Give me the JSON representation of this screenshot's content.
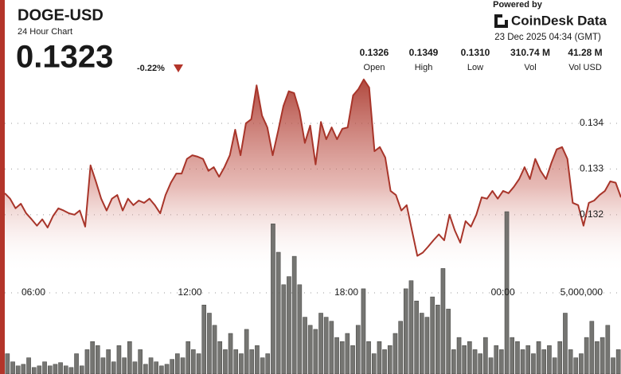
{
  "chart_data": {
    "type": "line",
    "title": "DOGE-USD",
    "subtitle": "24 Hour Chart",
    "price": "0.1323",
    "change": "-0.22%",
    "powered_by": "Powered by",
    "brand": "CoinDesk Data",
    "timestamp": "23 Dec 2025 04:34 (GMT)",
    "stats": [
      {
        "value": "0.1326",
        "label": "Open"
      },
      {
        "value": "0.1349",
        "label": "High"
      },
      {
        "value": "0.1310",
        "label": "Low"
      },
      {
        "value": "310.74 M",
        "label": "Vol"
      },
      {
        "value": "41.28 M",
        "label": "Vol USD"
      }
    ],
    "xlim": [
      4.9,
      28.53
    ],
    "xticks": [
      {
        "value": 6,
        "label": "06:00"
      },
      {
        "value": 12,
        "label": "12:00"
      },
      {
        "value": 18,
        "label": "18:00"
      },
      {
        "value": 24,
        "label": "00:00"
      }
    ],
    "ylim": [
      0.1309,
      0.135
    ],
    "yticks": [
      0.132,
      0.133,
      0.134
    ],
    "y2lim": [
      0,
      10000000
    ],
    "y2ticks": [
      {
        "value": 5000000,
        "label": "5,000,000"
      }
    ],
    "grid": true,
    "series": [
      {
        "type": "area",
        "color": "#a8352a",
        "values": [
          0.13247,
          0.13235,
          0.13214,
          0.13224,
          0.13203,
          0.1319,
          0.13176,
          0.1319,
          0.13172,
          0.13197,
          0.13214,
          0.13209,
          0.13203,
          0.132,
          0.13209,
          0.13174,
          0.13308,
          0.13273,
          0.13235,
          0.13209,
          0.13235,
          0.13243,
          0.13209,
          0.13235,
          0.13221,
          0.13231,
          0.13226,
          0.13235,
          0.13221,
          0.13203,
          0.13243,
          0.1327,
          0.1329,
          0.1329,
          0.13322,
          0.1333,
          0.13327,
          0.13322,
          0.13296,
          0.13304,
          0.13283,
          0.13304,
          0.1333,
          0.13386,
          0.1333,
          0.134,
          0.13409,
          0.13483,
          0.13417,
          0.13391,
          0.1333,
          0.13383,
          0.13438,
          0.1347,
          0.13466,
          0.13426,
          0.13357,
          0.13395,
          0.1331,
          0.13403,
          0.13365,
          0.13391,
          0.13365,
          0.13388,
          0.13391,
          0.13461,
          0.13475,
          0.13496,
          0.13478,
          0.13339,
          0.13348,
          0.13325,
          0.13252,
          0.13243,
          0.13209,
          0.13221,
          0.13165,
          0.1311,
          0.13117,
          0.1313,
          0.13144,
          0.13157,
          0.13144,
          0.132,
          0.13165,
          0.13139,
          0.13186,
          0.13174,
          0.132,
          0.13238,
          0.13235,
          0.13252,
          0.13235,
          0.13252,
          0.13247,
          0.13261,
          0.13278,
          0.13304,
          0.13278,
          0.13322,
          0.13296,
          0.13278,
          0.13313,
          0.13343,
          0.13348,
          0.13322,
          0.13226,
          0.13221,
          0.13176,
          0.13226,
          0.13231,
          0.13243,
          0.13252,
          0.13273,
          0.1327,
          0.13238
        ]
      },
      {
        "type": "bar",
        "axis": "y2",
        "color": "#5d5d59",
        "values": [
          1250000,
          750000,
          500000,
          600000,
          1000000,
          400000,
          500000,
          750000,
          500000,
          600000,
          700000,
          500000,
          400000,
          1250000,
          500000,
          1500000,
          2000000,
          1750000,
          1000000,
          1500000,
          750000,
          1750000,
          1000000,
          2000000,
          750000,
          1500000,
          600000,
          1000000,
          750000,
          500000,
          600000,
          900000,
          1250000,
          1000000,
          2000000,
          1500000,
          1250000,
          4250000,
          3750000,
          3000000,
          2000000,
          1500000,
          2500000,
          1500000,
          1250000,
          2750000,
          1500000,
          1750000,
          1000000,
          1250000,
          9250000,
          7500000,
          5500000,
          6000000,
          7250000,
          5500000,
          3500000,
          3000000,
          2750000,
          3750000,
          3500000,
          3250000,
          2250000,
          2000000,
          2500000,
          1750000,
          3000000,
          5250000,
          2000000,
          1250000,
          2000000,
          1500000,
          1750000,
          2500000,
          3250000,
          5250000,
          5750000,
          4500000,
          3750000,
          3500000,
          4750000,
          4250000,
          6500000,
          4000000,
          1500000,
          2250000,
          1750000,
          2000000,
          1500000,
          1250000,
          2250000,
          1000000,
          1750000,
          1500000,
          10000000,
          2250000,
          2000000,
          1500000,
          1750000,
          1250000,
          2000000,
          1500000,
          1750000,
          1000000,
          2000000,
          3750000,
          1500000,
          1000000,
          1250000,
          2250000,
          3250000,
          2000000,
          2250000,
          3000000,
          1000000,
          1500000
        ]
      }
    ]
  }
}
